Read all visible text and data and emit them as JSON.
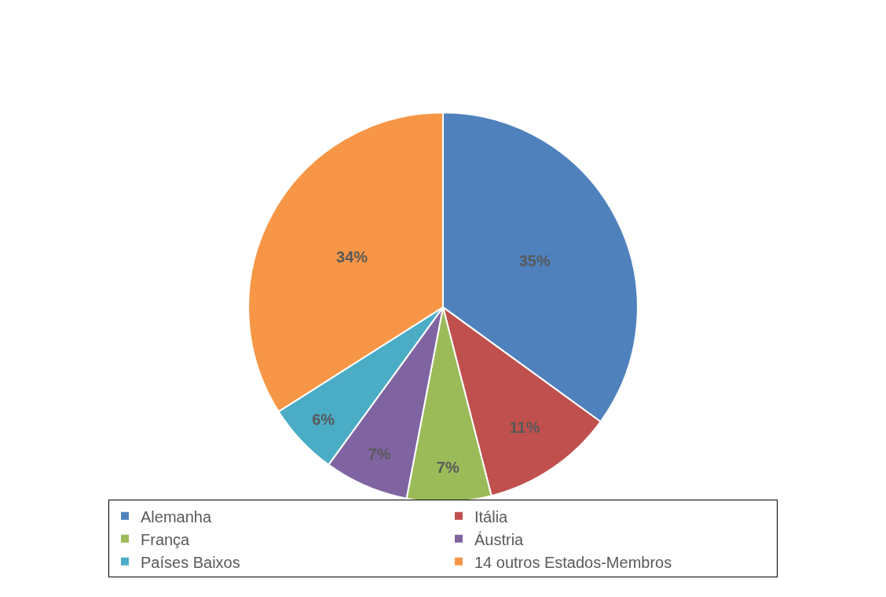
{
  "chart_data": {
    "type": "pie",
    "categories": [
      "Alemanha",
      "Itália",
      "França",
      "Áustria",
      "Países Baixos",
      "14 outros Estados-Membros"
    ],
    "values": [
      35,
      11,
      7,
      7,
      6,
      34
    ],
    "value_labels": [
      "35%",
      "11%",
      "7%",
      "7%",
      "6%",
      "34%"
    ],
    "colors": [
      "#4f81bd",
      "#c0504d",
      "#9bbb59",
      "#8064a2",
      "#4bacc6",
      "#f79646"
    ],
    "legend": "bottom"
  }
}
